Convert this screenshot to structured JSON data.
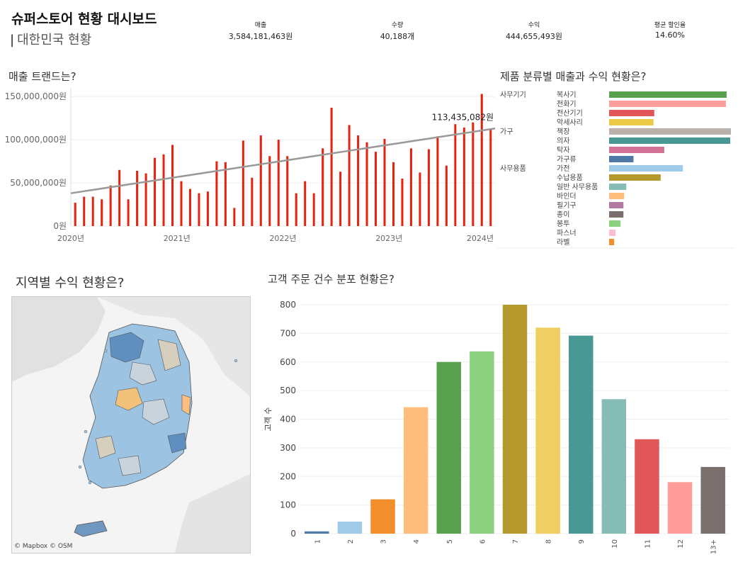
{
  "header": {
    "title": "슈퍼스토어 현황 대시보드",
    "subtitle_bar": "|",
    "subtitle": "대한민국 현황"
  },
  "kpis": [
    {
      "label": "매출",
      "value": "3,584,181,463원"
    },
    {
      "label": "수량",
      "value": "40,188개"
    },
    {
      "label": "수익",
      "value": "444,655,493원"
    },
    {
      "label": "평균 할인율",
      "value": "14.60%"
    }
  ],
  "sections": {
    "trend": "매출 트랜드는?",
    "category": "제품 분류별 매출과 수익 현황은?",
    "region": "지역별 수익 현황은?",
    "orders": "고객 주문 건수 분포 현황은?"
  },
  "map_credit": "© Mapbox © OSM",
  "chart_data": [
    {
      "type": "bar",
      "x_ticks": [
        "2020년",
        "2021년",
        "2022년",
        "2023년",
        "2024년"
      ],
      "y_ticks": [
        "0원",
        "50,000,000원",
        "100,000,000원",
        "150,000,000원"
      ],
      "ylim": [
        0,
        160000000
      ],
      "values": [
        27000000,
        34000000,
        34000000,
        31000000,
        47000000,
        65000000,
        31000000,
        64000000,
        61000000,
        79000000,
        83000000,
        94000000,
        52000000,
        43000000,
        38000000,
        40000000,
        75000000,
        74000000,
        21000000,
        99000000,
        56000000,
        105000000,
        81000000,
        100000000,
        81000000,
        38000000,
        52000000,
        38000000,
        90000000,
        137000000,
        63000000,
        117000000,
        105000000,
        97000000,
        86000000,
        101000000,
        74000000,
        55000000,
        90000000,
        62000000,
        89000000,
        104000000,
        70000000,
        118000000,
        114000000,
        120000000,
        153000000,
        113000000
      ],
      "trend_line": {
        "start": 38000000,
        "end": 113000000
      },
      "annotation": "113,435,082원",
      "colors": {
        "bar": "#e8210f",
        "trend": "#999999"
      }
    },
    {
      "type": "bar",
      "orientation": "horizontal",
      "groups": [
        {
          "name": "사무기기",
          "start_index": 0
        },
        {
          "name": "가구",
          "start_index": 4
        },
        {
          "name": "사무용품",
          "start_index": 8
        }
      ],
      "categories": [
        "복사기",
        "전화기",
        "전산기기",
        "악세사리",
        "책장",
        "의자",
        "탁자",
        "가구류",
        "가전",
        "수납용품",
        "일반 사무용품",
        "바인더",
        "필기구",
        "종이",
        "봉투",
        "파스너",
        "라벨"
      ],
      "values": [
        164,
        163,
        63,
        62,
        170,
        169,
        77,
        34,
        103,
        72,
        24,
        21,
        20,
        20,
        16,
        9,
        7
      ],
      "colors": [
        "#59a14f",
        "#ff9d9a",
        "#e15759",
        "#edc948",
        "#bab0ac",
        "#499894",
        "#d37295",
        "#4e79a7",
        "#a0cbe8",
        "#b6992d",
        "#86bcb6",
        "#ffbe7d",
        "#b07aa1",
        "#79706e",
        "#8cd17d",
        "#fabfd2",
        "#f28e2b"
      ]
    },
    {
      "type": "bar",
      "categories": [
        "1",
        "2",
        "3",
        "4",
        "5",
        "6",
        "7",
        "8",
        "9",
        "10",
        "11",
        "12",
        "13+"
      ],
      "values": [
        8,
        42,
        120,
        442,
        600,
        637,
        800,
        720,
        692,
        470,
        330,
        180,
        233
      ],
      "ylabel": "고객 수",
      "y_ticks": [
        "0",
        "100",
        "200",
        "300",
        "400",
        "500",
        "600",
        "700",
        "800"
      ],
      "ylim": [
        0,
        800
      ],
      "colors": [
        "#4e79a7",
        "#a0cbe8",
        "#f28e2b",
        "#ffbe7d",
        "#59a14f",
        "#8cd17d",
        "#b6992d",
        "#f1ce63",
        "#499894",
        "#86bcb6",
        "#e15759",
        "#ff9d9a",
        "#79706e"
      ]
    }
  ]
}
